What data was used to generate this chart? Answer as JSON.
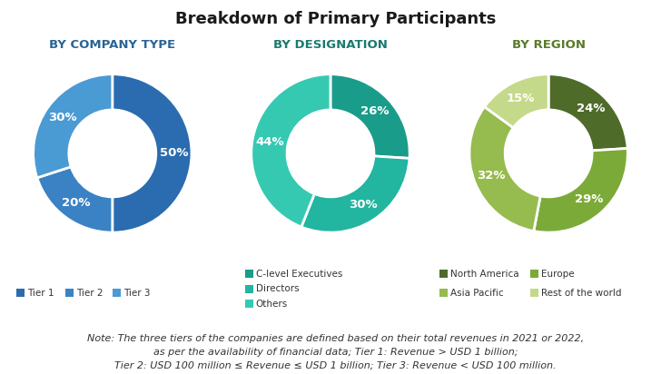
{
  "title": "Breakdown of Primary Participants",
  "title_fontsize": 13,
  "title_color": "#1a1a1a",
  "background_color": "#ffffff",
  "chart1_title": "BY COMPANY TYPE",
  "chart1_values": [
    50,
    20,
    30
  ],
  "chart1_labels": [
    "50%",
    "20%",
    "30%"
  ],
  "chart1_colors": [
    "#2b6cb0",
    "#3a82c4",
    "#4a9ad4"
  ],
  "chart1_legend": [
    "Tier 1",
    "Tier 2",
    "Tier 3"
  ],
  "chart1_legend_colors": [
    "#2b6cb0",
    "#3a82c4",
    "#4a9ad4"
  ],
  "chart2_title": "BY DESIGNATION",
  "chart2_values": [
    26,
    30,
    44
  ],
  "chart2_labels": [
    "26%",
    "30%",
    "44%"
  ],
  "chart2_colors": [
    "#1a9c8a",
    "#22b5a0",
    "#35c9b2"
  ],
  "chart2_legend": [
    "C-level Executives",
    "Directors",
    "Others"
  ],
  "chart2_legend_colors": [
    "#1a9c8a",
    "#22b5a0",
    "#35c9b2"
  ],
  "chart3_title": "BY REGION",
  "chart3_values": [
    24,
    29,
    32,
    15
  ],
  "chart3_labels": [
    "24%",
    "29%",
    "32%",
    "15%"
  ],
  "chart3_colors": [
    "#4e6b2a",
    "#7caa38",
    "#96bb4e",
    "#c5d98a"
  ],
  "chart3_legend": [
    "North America",
    "Europe",
    "Asia Pacific",
    "Rest of the world"
  ],
  "chart3_legend_colors": [
    "#4e6b2a",
    "#7caa38",
    "#96bb4e",
    "#c5d98a"
  ],
  "note_text": "Note: The three tiers of the companies are defined based on their total revenues in 2021 or 2022,\nas per the availability of financial data; Tier 1: Revenue > USD 1 billion;\nTier 2: USD 100 million ≤ Revenue ≤ USD 1 billion; Tier 3: Revenue < USD 100 million.",
  "note_fontsize": 8,
  "subtitle_fontsize": 9.5,
  "subtitle_color_1": "#2a6496",
  "subtitle_color_2": "#1a7a6e",
  "subtitle_color_3": "#5a7a2a",
  "legend_fontsize": 7.5,
  "pct_fontsize": 9.5
}
